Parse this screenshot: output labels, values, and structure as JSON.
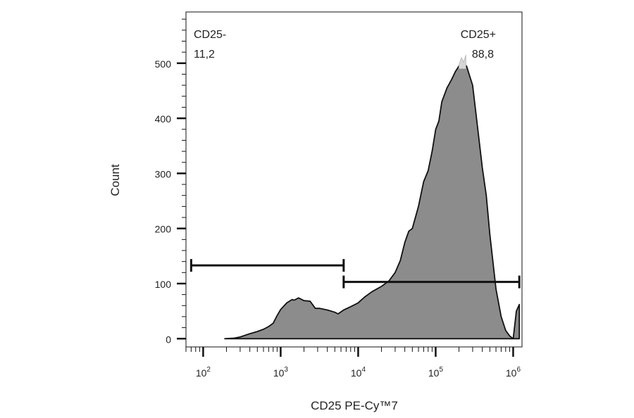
{
  "chart_data": {
    "type": "area",
    "title": "",
    "xlabel": "CD25 PE-Cy™7",
    "ylabel": "Count",
    "x_scale": "log",
    "xlim": [
      60,
      1300000
    ],
    "ylim": [
      -15,
      593
    ],
    "grid": false,
    "x_ticks": [
      {
        "base": "10",
        "exp": "2",
        "value": 100
      },
      {
        "base": "10",
        "exp": "3",
        "value": 1000
      },
      {
        "base": "10",
        "exp": "4",
        "value": 10000
      },
      {
        "base": "10",
        "exp": "5",
        "value": 100000
      },
      {
        "base": "10",
        "exp": "6",
        "value": 1000000
      }
    ],
    "y_ticks": [
      {
        "label": "0",
        "value": 0
      },
      {
        "label": "100",
        "value": 100
      },
      {
        "label": "200",
        "value": 200
      },
      {
        "label": "300",
        "value": 300
      },
      {
        "label": "400",
        "value": 400
      },
      {
        "label": "500",
        "value": 500
      }
    ],
    "histogram": {
      "fill_color": "#8c8c8c",
      "line_color": "#111111",
      "x": [
        190,
        250,
        300,
        400,
        500,
        600,
        700,
        800,
        900,
        1000,
        1200,
        1400,
        1500,
        1700,
        2000,
        2400,
        2800,
        3200,
        4000,
        5000,
        5500,
        6500,
        8000,
        10000,
        12000,
        15000,
        20000,
        25000,
        30000,
        35000,
        40000,
        45000,
        50000,
        60000,
        70000,
        80000,
        90000,
        100000,
        110000,
        120000,
        140000,
        160000,
        180000,
        200000,
        220000,
        250000,
        300000,
        350000,
        400000,
        450000,
        500000,
        600000,
        700000,
        800000,
        900000,
        1000000,
        1100000,
        1200000
      ],
      "y": [
        0,
        1,
        3,
        9,
        13,
        17,
        22,
        28,
        42,
        53,
        65,
        71,
        70,
        74,
        69,
        68,
        55,
        55,
        52,
        48,
        45,
        52,
        58,
        65,
        75,
        85,
        95,
        105,
        120,
        142,
        175,
        195,
        200,
        240,
        285,
        305,
        340,
        380,
        395,
        430,
        455,
        470,
        485,
        495,
        498,
        495,
        460,
        380,
        310,
        260,
        190,
        90,
        40,
        15,
        5,
        0,
        50,
        62
      ],
      "peak_x": [
        200000,
        215000,
        230000,
        245000
      ],
      "peak_y": [
        498,
        510,
        502,
        515
      ]
    },
    "gates": [
      {
        "name": "CD25-",
        "percent": "11,2",
        "x_start": 70,
        "x_end": 6500,
        "y": 133
      },
      {
        "name": "CD25+",
        "percent": "88,8",
        "x_start": 6500,
        "x_end": 1200000,
        "y": 103
      }
    ]
  }
}
